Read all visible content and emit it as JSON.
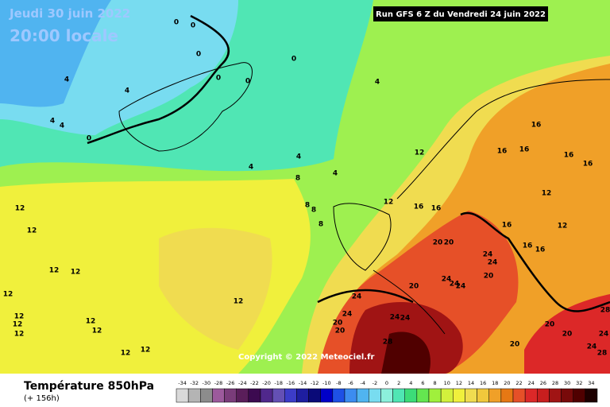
{
  "header": {
    "date": "Jeudi 30 juin 2022",
    "time": "20:00 locale",
    "run": "Run GFS 6 Z du Vendredi 24 juin 2022"
  },
  "copyright": "Copyright © 2022 Meteociel.fr",
  "footer": {
    "title": "Température 850hPa",
    "lead": "(+ 156h)"
  },
  "legend": {
    "values": [
      -34,
      -32,
      -30,
      -28,
      -26,
      -24,
      -22,
      -20,
      -18,
      -16,
      -14,
      -12,
      -10,
      -8,
      -6,
      -4,
      -2,
      0,
      2,
      4,
      6,
      8,
      10,
      12,
      14,
      16,
      18,
      20,
      22,
      24,
      26,
      28,
      30,
      32,
      34
    ],
    "colors": [
      "#d9d9d9",
      "#b4b4b4",
      "#8c8c8c",
      "#9c5a9c",
      "#7a3c7a",
      "#5a1e5a",
      "#3c0a50",
      "#50288c",
      "#6450b4",
      "#3c3cc8",
      "#1e1ea0",
      "#0a0a78",
      "#0000c8",
      "#1e50e6",
      "#3c8cf0",
      "#50b4f0",
      "#78dcf0",
      "#8cf0dc",
      "#50e6b4",
      "#3cdc78",
      "#64e650",
      "#a0f03c",
      "#d2f03c",
      "#f0f03c",
      "#f0dc50",
      "#f0c83c",
      "#f0a028",
      "#e67814",
      "#e65028",
      "#dc2828",
      "#c81e1e",
      "#a01414",
      "#780a0a",
      "#500000",
      "#1e0000"
    ]
  },
  "map": {
    "labels": [
      0,
      0,
      0,
      0,
      0,
      0,
      4,
      4,
      4,
      4,
      4,
      4,
      4,
      4,
      0,
      8,
      8,
      8,
      8,
      12,
      12,
      12,
      12,
      12,
      12,
      12,
      12,
      12,
      12,
      12,
      12,
      12,
      12,
      12,
      12,
      12,
      16,
      16,
      16,
      16,
      16,
      16,
      16,
      16,
      16,
      16,
      20,
      20,
      20,
      20,
      20,
      20,
      20,
      20,
      20,
      24,
      24,
      24,
      24,
      24,
      24,
      24,
      24,
      24,
      24,
      24,
      28,
      28,
      28
    ]
  }
}
